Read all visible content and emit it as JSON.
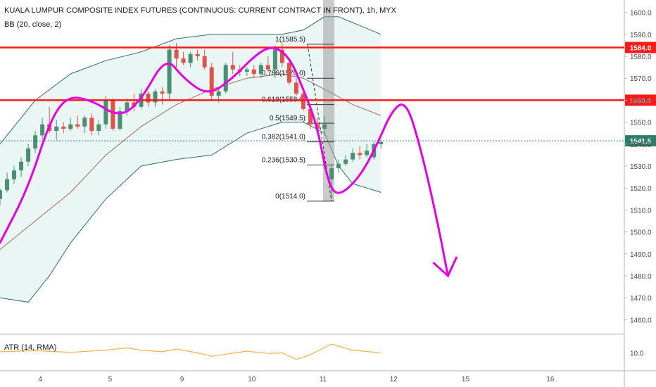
{
  "header": {
    "title": "KUALA LUMPUR COMPOSITE INDEX FUTURES (CONTINUOUS: CURRENT CONTRACT IN FRONT), 1h, MYX",
    "indicator": "BB (20, close, 2)",
    "atr_label": "ATR (14, RMA)"
  },
  "colors": {
    "up": "#4a8f72",
    "down": "#e0524a",
    "bb_fill": "#eaf6f4",
    "bb_band": "#2e6f62",
    "bb_basis": "#9a6a5e",
    "level_line": "#ff1a1a",
    "drawing": "#e600e6",
    "fib": "#333333",
    "atr": "#f2b24a",
    "price_label": "#2e7d6b"
  },
  "chart_data": {
    "type": "candlestick",
    "y_axis": {
      "min": 1455,
      "max": 1605,
      "ticks": [
        1460,
        1470,
        1480,
        1490,
        1500,
        1510,
        1520,
        1530,
        1540,
        1550,
        1560,
        1570,
        1580,
        1590,
        1600
      ]
    },
    "x_ticks": [
      {
        "label": "4",
        "x": 4
      },
      {
        "label": "5",
        "x": 5
      },
      {
        "label": "9",
        "x": 6
      },
      {
        "label": "10",
        "x": 7
      },
      {
        "label": "11",
        "x": 8
      },
      {
        "label": "12",
        "x": 9
      },
      {
        "label": "15",
        "x": 10
      },
      {
        "label": "16",
        "x": 11
      }
    ],
    "candles": [
      {
        "x": 3.0,
        "o": 1515,
        "h": 1520,
        "l": 1512,
        "c": 1519
      },
      {
        "x": 3.1,
        "o": 1519,
        "h": 1527,
        "l": 1518,
        "c": 1524
      },
      {
        "x": 3.2,
        "o": 1524,
        "h": 1530,
        "l": 1522,
        "c": 1528
      },
      {
        "x": 3.3,
        "o": 1528,
        "h": 1534,
        "l": 1525,
        "c": 1532
      },
      {
        "x": 3.4,
        "o": 1532,
        "h": 1540,
        "l": 1530,
        "c": 1538
      },
      {
        "x": 3.5,
        "o": 1538,
        "h": 1546,
        "l": 1536,
        "c": 1544
      },
      {
        "x": 3.6,
        "o": 1544,
        "h": 1552,
        "l": 1542,
        "c": 1549
      },
      {
        "x": 3.7,
        "o": 1549,
        "h": 1557,
        "l": 1545,
        "c": 1546
      },
      {
        "x": 3.8,
        "o": 1546,
        "h": 1551,
        "l": 1542,
        "c": 1548
      },
      {
        "x": 3.9,
        "o": 1548,
        "h": 1550,
        "l": 1545,
        "c": 1547
      },
      {
        "x": 4.0,
        "o": 1547,
        "h": 1552,
        "l": 1546,
        "c": 1549
      },
      {
        "x": 4.1,
        "o": 1549,
        "h": 1553,
        "l": 1547,
        "c": 1548
      },
      {
        "x": 4.2,
        "o": 1548,
        "h": 1553,
        "l": 1545,
        "c": 1552
      },
      {
        "x": 4.3,
        "o": 1552,
        "h": 1554,
        "l": 1544,
        "c": 1546
      },
      {
        "x": 4.4,
        "o": 1546,
        "h": 1551,
        "l": 1544,
        "c": 1549
      },
      {
        "x": 4.5,
        "o": 1549,
        "h": 1562,
        "l": 1547,
        "c": 1560
      },
      {
        "x": 4.6,
        "o": 1560,
        "h": 1561,
        "l": 1546,
        "c": 1547
      },
      {
        "x": 4.7,
        "o": 1547,
        "h": 1557,
        "l": 1546,
        "c": 1555
      },
      {
        "x": 4.8,
        "o": 1555,
        "h": 1561,
        "l": 1553,
        "c": 1559
      },
      {
        "x": 4.9,
        "o": 1559,
        "h": 1563,
        "l": 1555,
        "c": 1557
      },
      {
        "x": 5.0,
        "o": 1557,
        "h": 1565,
        "l": 1556,
        "c": 1563
      },
      {
        "x": 5.1,
        "o": 1563,
        "h": 1564,
        "l": 1557,
        "c": 1559
      },
      {
        "x": 5.2,
        "o": 1559,
        "h": 1565,
        "l": 1557,
        "c": 1564
      },
      {
        "x": 5.3,
        "o": 1564,
        "h": 1566,
        "l": 1558,
        "c": 1563
      },
      {
        "x": 5.4,
        "o": 1563,
        "h": 1585,
        "l": 1560,
        "c": 1583
      },
      {
        "x": 5.5,
        "o": 1583,
        "h": 1586,
        "l": 1575,
        "c": 1579
      },
      {
        "x": 5.6,
        "o": 1579,
        "h": 1582,
        "l": 1576,
        "c": 1577
      },
      {
        "x": 5.7,
        "o": 1577,
        "h": 1582,
        "l": 1575,
        "c": 1581
      },
      {
        "x": 5.8,
        "o": 1581,
        "h": 1583,
        "l": 1578,
        "c": 1580
      },
      {
        "x": 5.9,
        "o": 1580,
        "h": 1583,
        "l": 1574,
        "c": 1575
      },
      {
        "x": 6.0,
        "o": 1575,
        "h": 1577,
        "l": 1560,
        "c": 1562
      },
      {
        "x": 6.1,
        "o": 1562,
        "h": 1566,
        "l": 1559,
        "c": 1564
      },
      {
        "x": 6.2,
        "o": 1564,
        "h": 1577,
        "l": 1563,
        "c": 1576
      },
      {
        "x": 6.3,
        "o": 1576,
        "h": 1582,
        "l": 1572,
        "c": 1574
      },
      {
        "x": 6.4,
        "o": 1574,
        "h": 1576,
        "l": 1571,
        "c": 1573
      },
      {
        "x": 6.5,
        "o": 1573,
        "h": 1575,
        "l": 1571,
        "c": 1574
      },
      {
        "x": 6.6,
        "o": 1574,
        "h": 1576,
        "l": 1570,
        "c": 1572
      },
      {
        "x": 6.7,
        "o": 1572,
        "h": 1577,
        "l": 1570,
        "c": 1576
      },
      {
        "x": 6.8,
        "o": 1576,
        "h": 1580,
        "l": 1573,
        "c": 1574
      },
      {
        "x": 6.9,
        "o": 1574,
        "h": 1585,
        "l": 1570,
        "c": 1583
      },
      {
        "x": 7.0,
        "o": 1583,
        "h": 1586,
        "l": 1575,
        "c": 1577
      },
      {
        "x": 7.1,
        "o": 1577,
        "h": 1578,
        "l": 1567,
        "c": 1568
      },
      {
        "x": 7.2,
        "o": 1568,
        "h": 1570,
        "l": 1562,
        "c": 1563
      },
      {
        "x": 7.3,
        "o": 1563,
        "h": 1564,
        "l": 1555,
        "c": 1556
      },
      {
        "x": 7.4,
        "o": 1556,
        "h": 1558,
        "l": 1547,
        "c": 1549
      },
      {
        "x": 7.5,
        "o": 1549,
        "h": 1552,
        "l": 1545,
        "c": 1547
      },
      {
        "x": 7.6,
        "o": 1547,
        "h": 1553,
        "l": 1544,
        "c": 1549
      },
      {
        "x": 7.7,
        "o": 1524,
        "h": 1531,
        "l": 1515,
        "c": 1529
      },
      {
        "x": 7.8,
        "o": 1529,
        "h": 1533,
        "l": 1527,
        "c": 1531
      },
      {
        "x": 7.9,
        "o": 1531,
        "h": 1535,
        "l": 1530,
        "c": 1533
      },
      {
        "x": 8.0,
        "o": 1533,
        "h": 1538,
        "l": 1532,
        "c": 1536
      },
      {
        "x": 8.1,
        "o": 1536,
        "h": 1539,
        "l": 1533,
        "c": 1535
      },
      {
        "x": 8.2,
        "o": 1535,
        "h": 1540,
        "l": 1534,
        "c": 1537
      },
      {
        "x": 8.3,
        "o": 1534,
        "h": 1541,
        "l": 1533,
        "c": 1540
      },
      {
        "x": 8.4,
        "o": 1540,
        "h": 1542,
        "l": 1538,
        "c": 1541
      }
    ],
    "bb_upper": [
      [
        3.0,
        1540
      ],
      [
        3.5,
        1560
      ],
      [
        4.0,
        1572
      ],
      [
        4.5,
        1578
      ],
      [
        5.0,
        1582
      ],
      [
        5.5,
        1588
      ],
      [
        6.0,
        1590
      ],
      [
        6.5,
        1590
      ],
      [
        7.0,
        1590
      ],
      [
        7.3,
        1592
      ],
      [
        7.6,
        1598
      ],
      [
        7.8,
        1598
      ],
      [
        8.4,
        1590
      ]
    ],
    "bb_lower": [
      [
        3.0,
        1470
      ],
      [
        3.4,
        1468
      ],
      [
        3.7,
        1480
      ],
      [
        4.0,
        1495
      ],
      [
        4.5,
        1515
      ],
      [
        5.0,
        1530
      ],
      [
        5.5,
        1533
      ],
      [
        6.0,
        1535
      ],
      [
        6.5,
        1545
      ],
      [
        7.0,
        1550
      ],
      [
        7.3,
        1550
      ],
      [
        7.6,
        1545
      ],
      [
        7.8,
        1530
      ],
      [
        8.0,
        1522
      ],
      [
        8.4,
        1518
      ]
    ],
    "bb_basis": [
      [
        3.0,
        1492
      ],
      [
        3.5,
        1505
      ],
      [
        4.0,
        1518
      ],
      [
        4.5,
        1535
      ],
      [
        5.0,
        1548
      ],
      [
        5.5,
        1558
      ],
      [
        6.0,
        1565
      ],
      [
        6.5,
        1570
      ],
      [
        7.0,
        1572
      ],
      [
        7.3,
        1570
      ],
      [
        7.6,
        1565
      ],
      [
        8.0,
        1558
      ],
      [
        8.4,
        1553
      ]
    ],
    "levels": [
      {
        "value": 1584.0,
        "label": "1584.0"
      },
      {
        "value": 1560.0,
        "label": "1560.0"
      }
    ],
    "last_price": {
      "value": 1541.5,
      "label": "1541.5"
    },
    "fib": [
      {
        "label": "1(1585.5)",
        "value": 1585.5
      },
      {
        "label": "0.786(1570.0)",
        "value": 1570.0
      },
      {
        "label": "0.618(1558.0)",
        "value": 1558.0
      },
      {
        "label": "0.5(1549.5)",
        "value": 1549.5
      },
      {
        "label": "0.382(1541.0)",
        "value": 1541.0
      },
      {
        "label": "0.236(1530.5)",
        "value": 1530.5
      },
      {
        "label": "0(1514.0)",
        "value": 1514.0
      }
    ],
    "atr": {
      "tick": "10.0",
      "value": 10.0,
      "min": 7,
      "max": 13,
      "points": [
        [
          3.0,
          10.2
        ],
        [
          3.5,
          10.4
        ],
        [
          4.0,
          10.1
        ],
        [
          4.5,
          10.5
        ],
        [
          4.8,
          10.9
        ],
        [
          5.0,
          10.5
        ],
        [
          5.3,
          10.2
        ],
        [
          5.5,
          10.7
        ],
        [
          5.8,
          10.0
        ],
        [
          6.0,
          9.4
        ],
        [
          6.5,
          10.3
        ],
        [
          6.8,
          9.9
        ],
        [
          7.0,
          10.0
        ],
        [
          7.2,
          8.8
        ],
        [
          7.4,
          9.7
        ],
        [
          7.7,
          11.6
        ],
        [
          8.0,
          10.5
        ],
        [
          8.4,
          10.0
        ]
      ]
    },
    "drawing_path": [
      [
        3.0,
        1495
      ],
      [
        3.4,
        1520
      ],
      [
        3.7,
        1550
      ],
      [
        3.95,
        1562
      ],
      [
        4.3,
        1560
      ],
      [
        4.7,
        1552
      ],
      [
        5.0,
        1560
      ],
      [
        5.35,
        1580
      ],
      [
        5.6,
        1570
      ],
      [
        5.95,
        1562
      ],
      [
        6.3,
        1570
      ],
      [
        6.6,
        1580
      ],
      [
        6.85,
        1585
      ],
      [
        7.1,
        1580
      ],
      [
        7.3,
        1565
      ],
      [
        7.5,
        1548
      ],
      [
        7.65,
        1522
      ],
      [
        7.8,
        1516
      ],
      [
        8.1,
        1525
      ],
      [
        8.35,
        1540
      ],
      [
        8.55,
        1555
      ],
      [
        8.75,
        1560
      ],
      [
        8.95,
        1540
      ],
      [
        9.2,
        1505
      ],
      [
        9.35,
        1480
      ]
    ]
  }
}
